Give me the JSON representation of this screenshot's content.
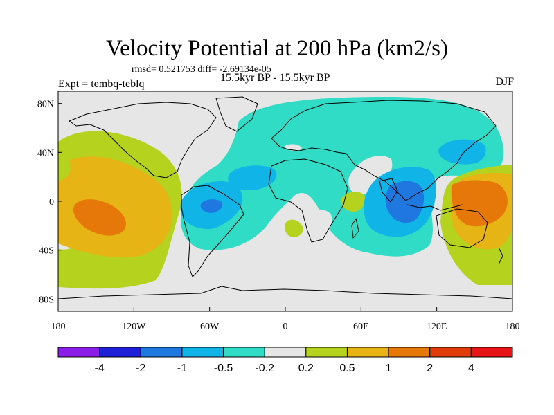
{
  "title": "Velocity Potential at 200 hPa (km2/s)",
  "stats_text": "rmsd= 0.521753 diff= -2.69134e-05",
  "experiment": "Expt = tembq-teblq",
  "period": "15.5kyr BP - 15.5kyr BP",
  "season": "DJF",
  "map": {
    "lon_ticks": [
      {
        "value": -180,
        "label": "180"
      },
      {
        "value": -120,
        "label": "120W"
      },
      {
        "value": -60,
        "label": "60W"
      },
      {
        "value": 0,
        "label": "0"
      },
      {
        "value": 60,
        "label": "60E"
      },
      {
        "value": 120,
        "label": "120E"
      },
      {
        "value": 180,
        "label": "180"
      }
    ],
    "lat_ticks": [
      {
        "value": 80,
        "label": "80N"
      },
      {
        "value": 40,
        "label": "40N"
      },
      {
        "value": 0,
        "label": "0"
      },
      {
        "value": -40,
        "label": "40S"
      },
      {
        "value": -80,
        "label": "80S"
      }
    ],
    "lon_range": [
      -180,
      180
    ],
    "lat_range": [
      -90,
      90
    ]
  },
  "colorbar": {
    "colors": [
      "#8b1fe8",
      "#2020d8",
      "#1e78e0",
      "#10b4e6",
      "#30dcc6",
      "#e6e6e6",
      "#b4d21e",
      "#e6b414",
      "#e6780a",
      "#e03c0a",
      "#e61414"
    ],
    "labels": [
      "-4",
      "-2",
      "-1",
      "-0.5",
      "-0.2",
      "0.2",
      "0.5",
      "1",
      "2",
      "4"
    ]
  },
  "colors": {
    "background": "#e6e6e6",
    "coast": "#000000"
  }
}
